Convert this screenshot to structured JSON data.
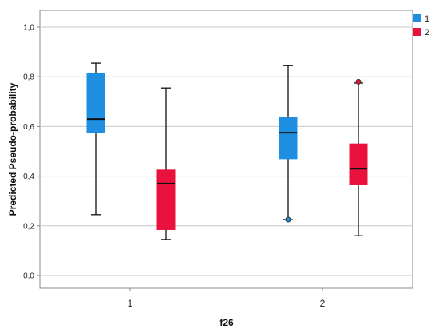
{
  "chart_data": {
    "type": "boxplot",
    "title": "",
    "xlabel": "f26",
    "ylabel": "Predicted Pseudo-probability",
    "ylim": [
      0.0,
      1.05
    ],
    "yticks": [
      "0,0",
      "0,2",
      "0,4",
      "0,6",
      "0,8",
      "1,0"
    ],
    "ytick_values": [
      0.0,
      0.2,
      0.4,
      0.6,
      0.8,
      1.0
    ],
    "categories": [
      "1",
      "2"
    ],
    "grid": true,
    "legend_position": "top-right",
    "series": [
      {
        "name": "1",
        "color": "#1e8fe1",
        "boxes": [
          {
            "min": 0.245,
            "q1": 0.575,
            "median": 0.63,
            "q3": 0.815,
            "max": 0.855,
            "outliers": []
          },
          {
            "min": 0.225,
            "q1": 0.47,
            "median": 0.575,
            "q3": 0.635,
            "max": 0.845,
            "outliers": [
              0.225
            ]
          }
        ]
      },
      {
        "name": "2",
        "color": "#e8123c",
        "boxes": [
          {
            "min": 0.145,
            "q1": 0.185,
            "median": 0.37,
            "q3": 0.425,
            "max": 0.755,
            "outliers": []
          },
          {
            "min": 0.16,
            "q1": 0.365,
            "median": 0.43,
            "q3": 0.53,
            "max": 0.775,
            "outliers": [
              0.78
            ]
          }
        ]
      }
    ]
  }
}
